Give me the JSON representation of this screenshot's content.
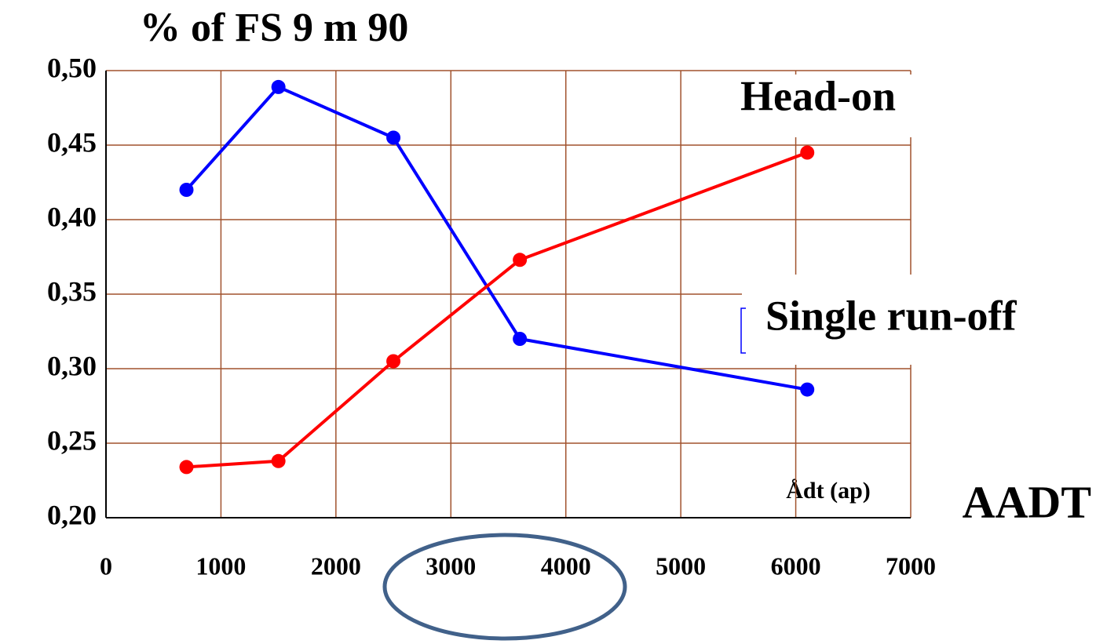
{
  "chart_data": {
    "type": "line",
    "title": "% of FS 9 m 90",
    "x_label": "AADT",
    "annotation": "Ådt (ap)",
    "x": [
      700,
      1500,
      2500,
      3600,
      6100
    ],
    "series": [
      {
        "name": "Single run-off",
        "color": "#0000ff",
        "values": [
          0.42,
          0.489,
          0.455,
          0.32,
          0.286
        ]
      },
      {
        "name": "Head-on",
        "color": "#ff0000",
        "values": [
          0.234,
          0.238,
          0.305,
          0.373,
          0.445
        ]
      }
    ],
    "xlim": [
      0,
      7000
    ],
    "xticks": [
      0,
      1000,
      2000,
      3000,
      4000,
      5000,
      6000,
      7000
    ],
    "ylim": [
      0.2,
      0.5
    ],
    "yticks": [
      {
        "value": 0.2,
        "label": "0,20"
      },
      {
        "value": 0.25,
        "label": "0,25"
      },
      {
        "value": 0.3,
        "label": "0,30"
      },
      {
        "value": 0.35,
        "label": "0,35"
      },
      {
        "value": 0.4,
        "label": "0,40"
      },
      {
        "value": 0.45,
        "label": "0,45"
      },
      {
        "value": 0.5,
        "label": "0,50"
      }
    ],
    "grid": true,
    "grid_color": "#a0522d"
  }
}
